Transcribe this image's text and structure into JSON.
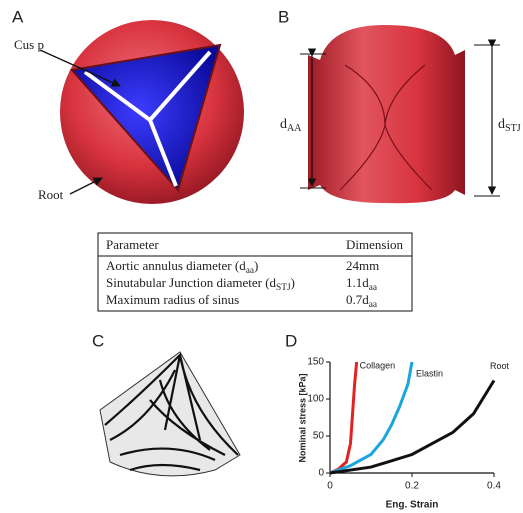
{
  "panels": {
    "A": {
      "label": "A",
      "annotations": [
        "Cus p",
        "Root"
      ]
    },
    "B": {
      "label": "B",
      "dims": [
        {
          "text": "d",
          "sub": "AA"
        },
        {
          "text": "d",
          "sub": "STJ"
        }
      ]
    },
    "C": {
      "label": "C"
    },
    "D": {
      "label": "D"
    }
  },
  "table": {
    "header": [
      "Parameter",
      "Dimension"
    ],
    "rows": [
      [
        {
          "text": "Aortic annulus diameter (d",
          "sub": "aa",
          "tail": ")"
        },
        {
          "text": "24mm"
        }
      ],
      [
        {
          "text": "Sinutabular Junction diameter (d",
          "sub": "STJ",
          "tail": ")"
        },
        {
          "text": "1.1d",
          "sub": "aa"
        }
      ],
      [
        {
          "text": "Maximum radius of sinus"
        },
        {
          "text": "0.7d",
          "sub": "aa"
        }
      ]
    ]
  },
  "chart_data": {
    "type": "line",
    "x_label": "Eng. Strain",
    "y_label": "Nominal stress [kPa]",
    "xlim": [
      0,
      0.4
    ],
    "ylim": [
      0,
      150
    ],
    "xticks": [
      0,
      0.2,
      0.4
    ],
    "yticks": [
      0,
      50,
      100,
      150
    ],
    "series": [
      {
        "name": "Collagen",
        "color": "#e0231f",
        "x": [
          0,
          0.02,
          0.04,
          0.05,
          0.055,
          0.06,
          0.065
        ],
        "values": [
          0,
          5,
          15,
          40,
          80,
          120,
          150
        ]
      },
      {
        "name": "Elastin",
        "color": "#1aa6dc",
        "x": [
          0,
          0.05,
          0.1,
          0.13,
          0.15,
          0.17,
          0.19,
          0.2
        ],
        "values": [
          0,
          10,
          25,
          45,
          65,
          90,
          120,
          150
        ]
      },
      {
        "name": "Root",
        "color": "#111111",
        "x": [
          0,
          0.1,
          0.2,
          0.3,
          0.35,
          0.4
        ],
        "values": [
          0,
          8,
          25,
          55,
          80,
          125
        ]
      }
    ]
  }
}
